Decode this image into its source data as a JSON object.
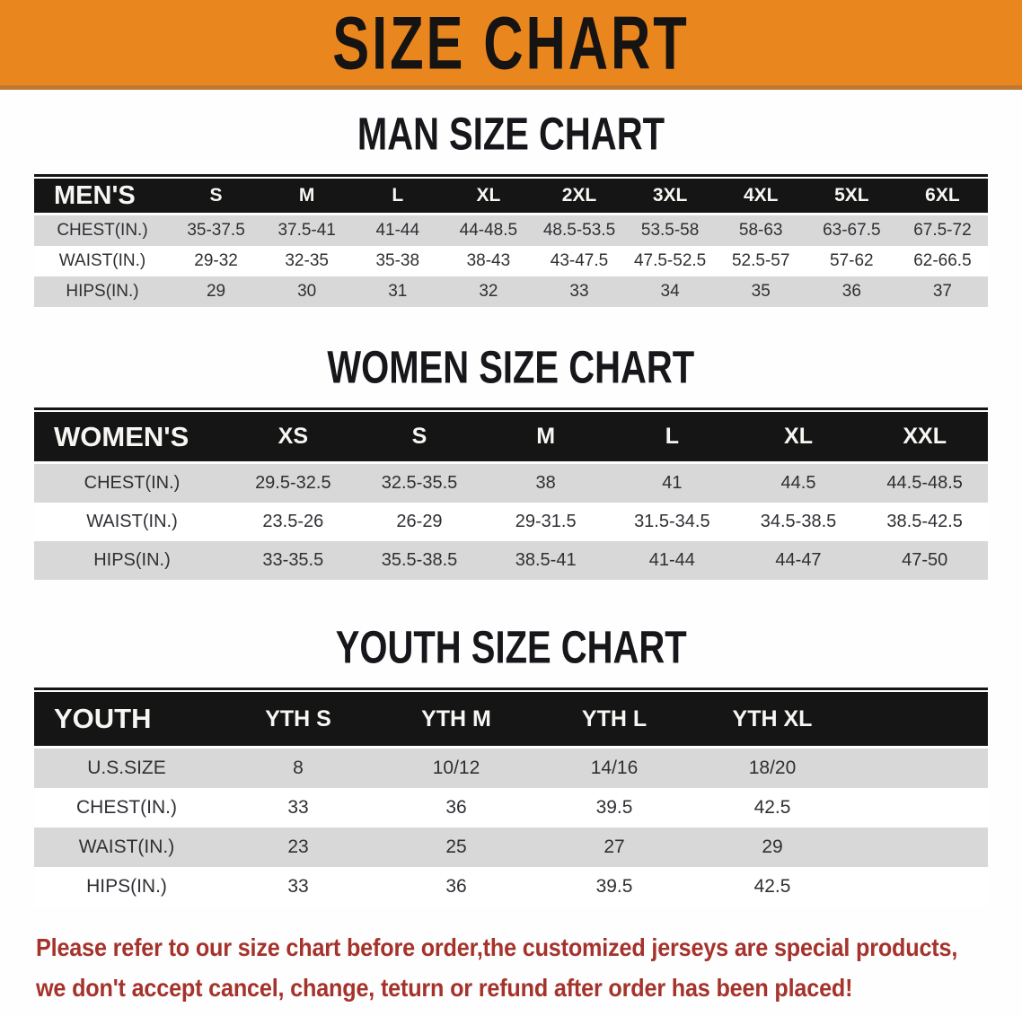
{
  "banner": {
    "title": "SIZE CHART"
  },
  "colors": {
    "banner_bg": "#ea861e",
    "banner_edge": "#bf7733",
    "table_header_bg": "#151515",
    "table_header_text": "#f7f6f2",
    "row_stripe_bg": "#d8d8d8",
    "row_plain_bg": "#ffffff",
    "row_text": "#2f3034",
    "footer_text": "#a5332c"
  },
  "tables": [
    {
      "id": "men",
      "heading": "MAN SIZE CHART",
      "corner_label": "MEN'S",
      "columns": [
        "S",
        "M",
        "L",
        "XL",
        "2XL",
        "3XL",
        "4XL",
        "5XL",
        "6XL"
      ],
      "rows": [
        {
          "label": "CHEST(IN.)",
          "values": [
            "35-37.5",
            "37.5-41",
            "41-44",
            "44-48.5",
            "48.5-53.5",
            "53.5-58",
            "58-63",
            "63-67.5",
            "67.5-72"
          ]
        },
        {
          "label": "WAIST(IN.)",
          "values": [
            "29-32",
            "32-35",
            "35-38",
            "38-43",
            "43-47.5",
            "47.5-52.5",
            "52.5-57",
            "57-62",
            "62-66.5"
          ]
        },
        {
          "label": "HIPS(IN.)",
          "values": [
            "29",
            "30",
            "31",
            "32",
            "33",
            "34",
            "35",
            "36",
            "37"
          ]
        }
      ]
    },
    {
      "id": "women",
      "heading": "WOMEN SIZE CHART",
      "corner_label": "WOMEN'S",
      "columns": [
        "XS",
        "S",
        "M",
        "L",
        "XL",
        "XXL"
      ],
      "rows": [
        {
          "label": "CHEST(IN.)",
          "values": [
            "29.5-32.5",
            "32.5-35.5",
            "38",
            "41",
            "44.5",
            "44.5-48.5"
          ]
        },
        {
          "label": "WAIST(IN.)",
          "values": [
            "23.5-26",
            "26-29",
            "29-31.5",
            "31.5-34.5",
            "34.5-38.5",
            "38.5-42.5"
          ]
        },
        {
          "label": "HIPS(IN.)",
          "values": [
            "33-35.5",
            "35.5-38.5",
            "38.5-41",
            "41-44",
            "44-47",
            "47-50"
          ]
        }
      ]
    },
    {
      "id": "youth",
      "heading": "YOUTH SIZE CHART",
      "corner_label": "YOUTH",
      "columns": [
        "YTH S",
        "YTH M",
        "YTH L",
        "YTH XL"
      ],
      "rows": [
        {
          "label": "U.S.SIZE",
          "values": [
            "8",
            "10/12",
            "14/16",
            "18/20"
          ]
        },
        {
          "label": "CHEST(IN.)",
          "values": [
            "33",
            "36",
            "39.5",
            "42.5"
          ]
        },
        {
          "label": "WAIST(IN.)",
          "values": [
            "23",
            "25",
            "27",
            "29"
          ]
        },
        {
          "label": "HIPS(IN.)",
          "values": [
            "33",
            "36",
            "39.5",
            "42.5"
          ]
        }
      ]
    }
  ],
  "footer": {
    "line1": "Please refer to our size chart before order,the customized jerseys are special products,",
    "line2": "we don't accept cancel, change, teturn or refund after order has been placed!"
  }
}
